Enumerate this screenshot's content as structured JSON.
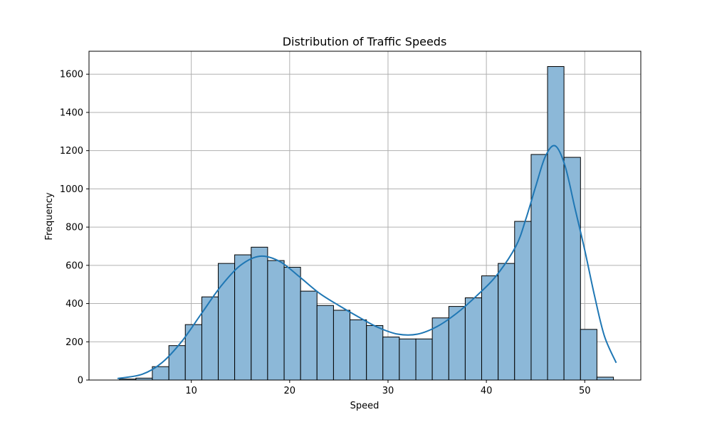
{
  "chart_data": {
    "type": "bar",
    "title": "Distribution of Traffic Speeds",
    "xlabel": "Speed",
    "ylabel": "Frequency",
    "xlim": [
      -0.4,
      55.7
    ],
    "ylim": [
      0,
      1720
    ],
    "xticks": [
      10,
      20,
      30,
      40,
      50
    ],
    "yticks": [
      0,
      200,
      400,
      600,
      800,
      1000,
      1200,
      1400,
      1600
    ],
    "grid": true,
    "bin_edges": [
      2.7,
      4.37,
      6.04,
      7.72,
      9.39,
      11.07,
      12.74,
      14.41,
      16.09,
      17.76,
      19.44,
      21.11,
      22.78,
      24.46,
      26.13,
      27.81,
      29.48,
      31.15,
      32.83,
      34.5,
      36.18,
      37.85,
      39.52,
      41.2,
      42.87,
      44.55,
      46.22,
      47.89,
      49.57,
      51.24,
      52.92
    ],
    "values": [
      5,
      10,
      70,
      180,
      290,
      435,
      610,
      655,
      695,
      625,
      590,
      465,
      390,
      365,
      315,
      285,
      225,
      215,
      215,
      325,
      385,
      430,
      545,
      610,
      830,
      1180,
      1640,
      1165,
      265,
      15
    ],
    "kde": {
      "x": [
        2.5,
        5,
        7,
        9,
        11,
        13,
        15,
        17,
        19,
        21,
        23,
        25,
        27,
        29,
        31,
        33,
        35,
        37,
        39,
        41,
        43,
        44,
        45,
        46,
        47,
        48,
        49,
        50,
        51,
        52,
        53.2
      ],
      "y": [
        8,
        30,
        90,
        200,
        345,
        490,
        600,
        648,
        620,
        540,
        455,
        390,
        330,
        275,
        240,
        240,
        280,
        350,
        440,
        545,
        700,
        840,
        1010,
        1170,
        1225,
        1120,
        900,
        680,
        440,
        230,
        90
      ]
    },
    "colors": {
      "bar": "#8cb8d8",
      "line": "#1f77b4",
      "grid": "#b0b0b0"
    }
  }
}
